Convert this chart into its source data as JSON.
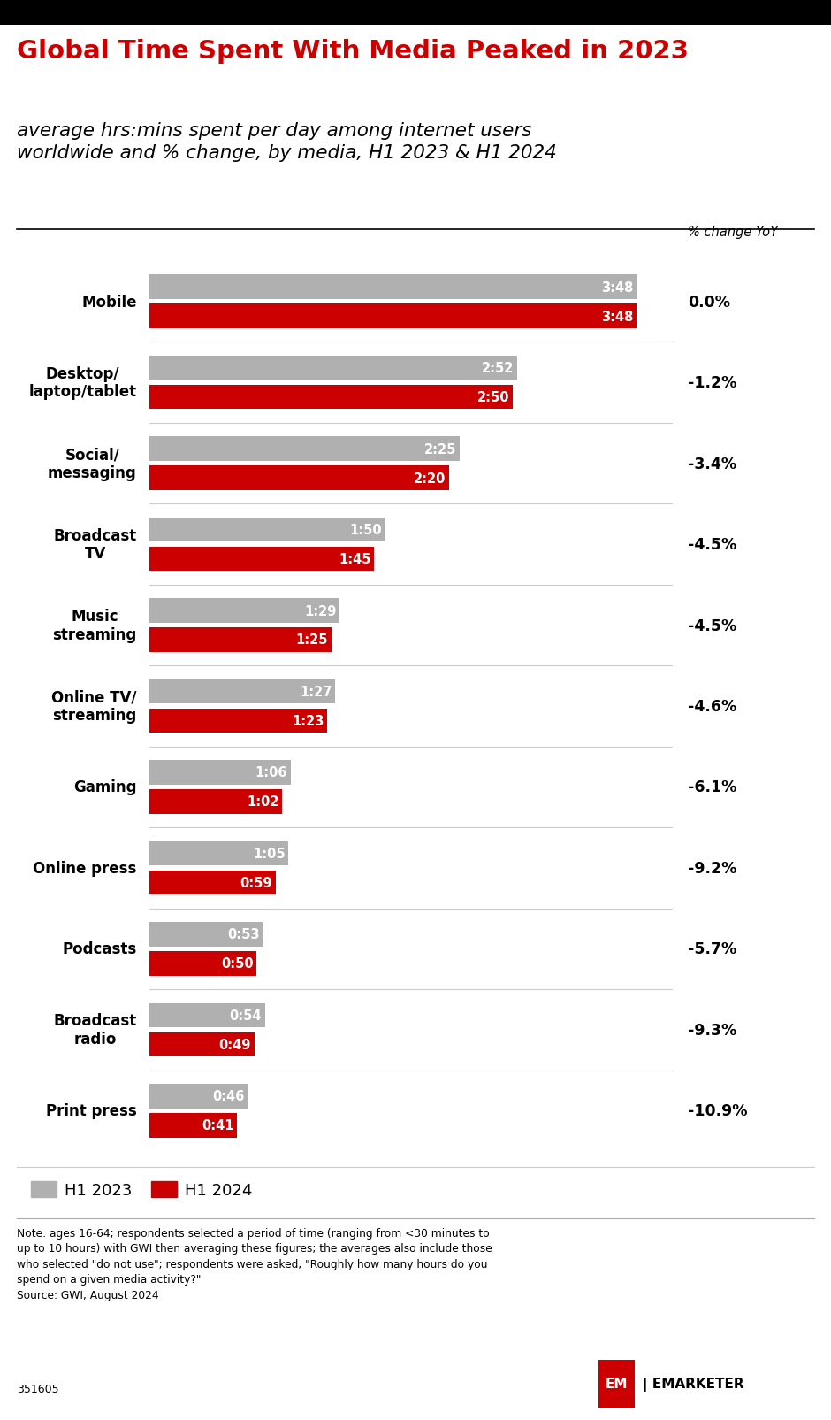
{
  "title": "Global Time Spent With Media Peaked in 2023",
  "subtitle": "average hrs:mins spent per day among internet users\nworldwide and % change, by media, H1 2023 & H1 2024",
  "categories": [
    "Mobile",
    "Desktop/\nlaptop/tablet",
    "Social/\nmessaging",
    "Broadcast\nTV",
    "Music\nstreaming",
    "Online TV/\nstreaming",
    "Gaming",
    "Online press",
    "Podcasts",
    "Broadcast\nradio",
    "Print press"
  ],
  "h1_2023_minutes": [
    228,
    172,
    145,
    110,
    89,
    87,
    66,
    65,
    53,
    54,
    46
  ],
  "h1_2024_minutes": [
    228,
    170,
    140,
    105,
    85,
    83,
    62,
    59,
    50,
    49,
    41
  ],
  "h1_2023_labels": [
    "3:48",
    "2:52",
    "2:25",
    "1:50",
    "1:29",
    "1:27",
    "1:06",
    "1:05",
    "0:53",
    "0:54",
    "0:46"
  ],
  "h1_2024_labels": [
    "3:48",
    "2:50",
    "2:20",
    "1:45",
    "1:25",
    "1:23",
    "1:02",
    "0:59",
    "0:50",
    "0:49",
    "0:41"
  ],
  "pct_change": [
    "0.0%",
    "-1.2%",
    "-3.4%",
    "-4.5%",
    "-4.5%",
    "-4.6%",
    "-6.1%",
    "-9.2%",
    "-5.7%",
    "-9.3%",
    "-10.9%"
  ],
  "color_2023": "#b0b0b0",
  "color_2024": "#cc0000",
  "title_color": "#cc0000",
  "subtitle_color": "#000000",
  "background_color": "#ffffff",
  "note_line1": "Note: ages 16-64; respondents selected a period of time (ranging from <30 minutes to",
  "note_line2": "up to 10 hours) with GWI then averaging these figures; the averages also include those",
  "note_line3": "who selected \"do not use\"; respondents were asked, \"Roughly how many hours do you",
  "note_line4": "spend on a given media activity?\"",
  "note_line5": "Source: GWI, August 2024",
  "source_id": "351605",
  "yoy_label": "% change YoY",
  "legend_2023": "H1 2023",
  "legend_2024": "H1 2024"
}
